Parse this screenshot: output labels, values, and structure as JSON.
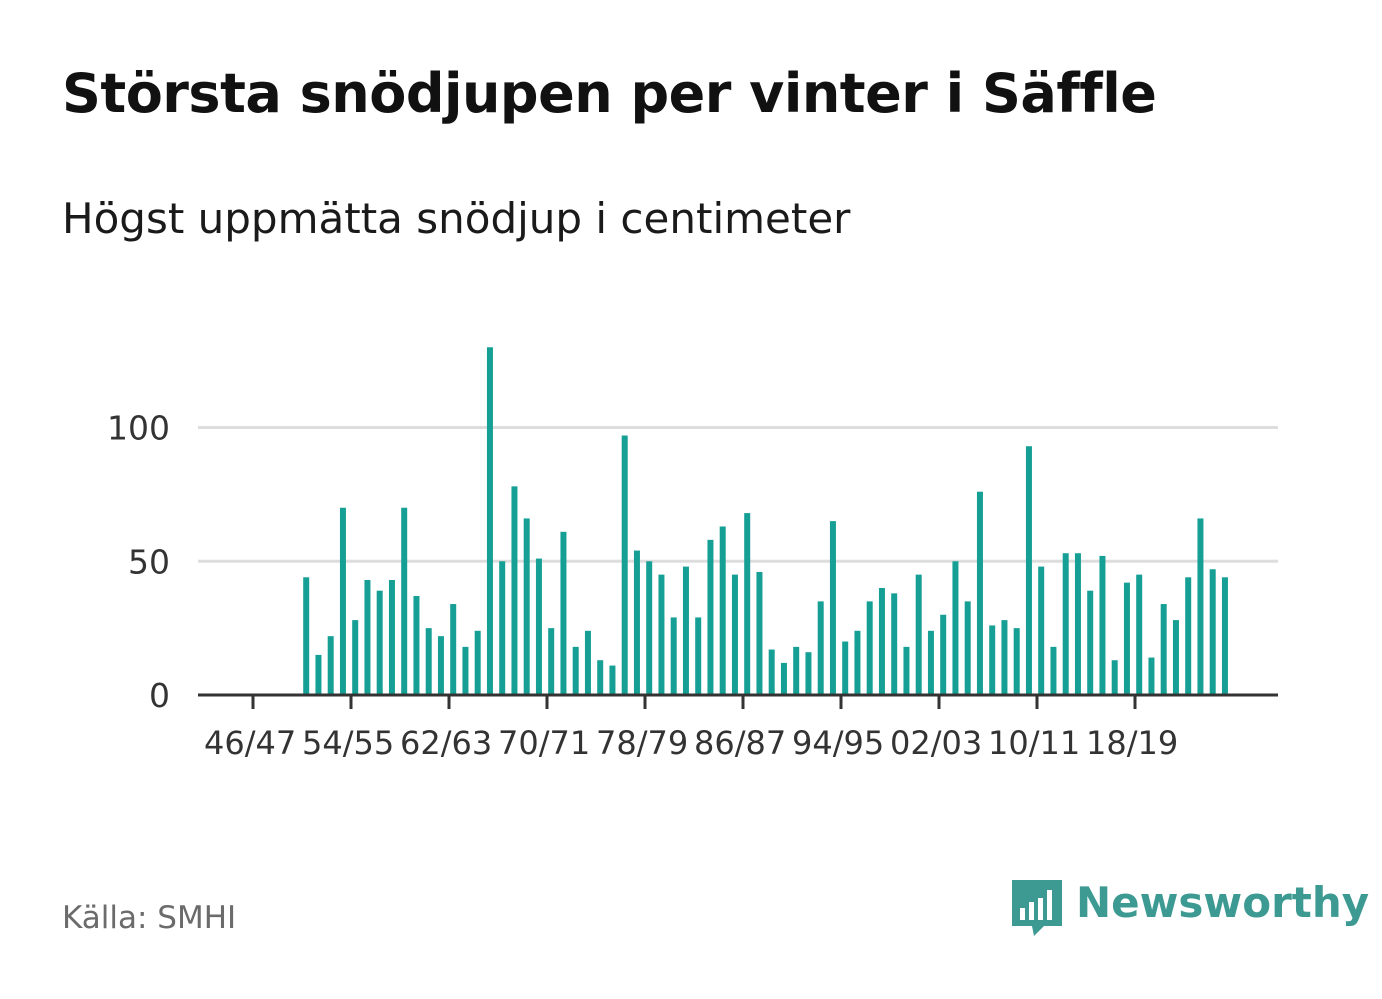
{
  "header": {
    "title": "Största snödjupen per vinter i Säffle",
    "subtitle": "Högst uppmätta snödjup i centimeter"
  },
  "footer": {
    "source": "Källa: SMHI",
    "brand": "Newsworthy"
  },
  "colors": {
    "bar": "#16a095",
    "grid": "#dddddd",
    "axis": "#333333",
    "brand": "#3d9a92",
    "text": "#111111",
    "tick_text": "#333333"
  },
  "icons": {
    "brand_logo": "bar-chart-speech-bubble-icon"
  },
  "chart_data": {
    "type": "bar",
    "title": "Största snödjupen per vinter i Säffle",
    "subtitle": "Högst uppmätta snödjup i centimeter",
    "xlabel": "",
    "ylabel": "",
    "ylim": [
      0,
      130
    ],
    "yticks": [
      0,
      50,
      100
    ],
    "grid": true,
    "xtick_labels": [
      "46/47",
      "54/55",
      "62/63",
      "70/71",
      "78/79",
      "86/87",
      "94/95",
      "02/03",
      "10/11",
      "18/19"
    ],
    "categories": [
      "46/47",
      "47/48",
      "48/49",
      "49/50",
      "50/51",
      "51/52",
      "52/53",
      "53/54",
      "54/55",
      "55/56",
      "56/57",
      "57/58",
      "58/59",
      "59/60",
      "60/61",
      "61/62",
      "62/63",
      "63/64",
      "64/65",
      "65/66",
      "66/67",
      "67/68",
      "68/69",
      "69/70",
      "70/71",
      "71/72",
      "72/73",
      "73/74",
      "74/75",
      "75/76",
      "76/77",
      "77/78",
      "78/79",
      "79/80",
      "80/81",
      "81/82",
      "82/83",
      "83/84",
      "84/85",
      "85/86",
      "86/87",
      "87/88",
      "88/89",
      "89/90",
      "90/91",
      "91/92",
      "92/93",
      "93/94",
      "94/95",
      "95/96",
      "96/97",
      "97/98",
      "98/99",
      "99/00",
      "00/01",
      "01/02",
      "02/03",
      "03/04",
      "04/05",
      "05/06",
      "06/07",
      "07/08",
      "08/09",
      "09/10",
      "10/11",
      "11/12",
      "12/13",
      "13/14",
      "14/15",
      "15/16",
      "16/17",
      "17/18",
      "18/19",
      "19/20",
      "20/21",
      "21/22",
      "22/23",
      "23/24",
      "24/25",
      "25/26"
    ],
    "values": [
      null,
      null,
      null,
      null,
      44,
      15,
      22,
      70,
      28,
      43,
      39,
      43,
      70,
      37,
      25,
      22,
      34,
      18,
      24,
      130,
      50,
      78,
      66,
      51,
      25,
      61,
      18,
      24,
      13,
      11,
      97,
      54,
      50,
      45,
      29,
      48,
      29,
      58,
      63,
      45,
      68,
      46,
      17,
      12,
      18,
      16,
      35,
      65,
      20,
      24,
      35,
      40,
      38,
      18,
      45,
      24,
      30,
      50,
      35,
      76,
      26,
      28,
      25,
      93,
      48,
      18,
      53,
      53,
      39,
      52,
      13,
      42,
      45,
      14,
      34,
      28,
      44,
      66,
      47,
      44
    ]
  }
}
